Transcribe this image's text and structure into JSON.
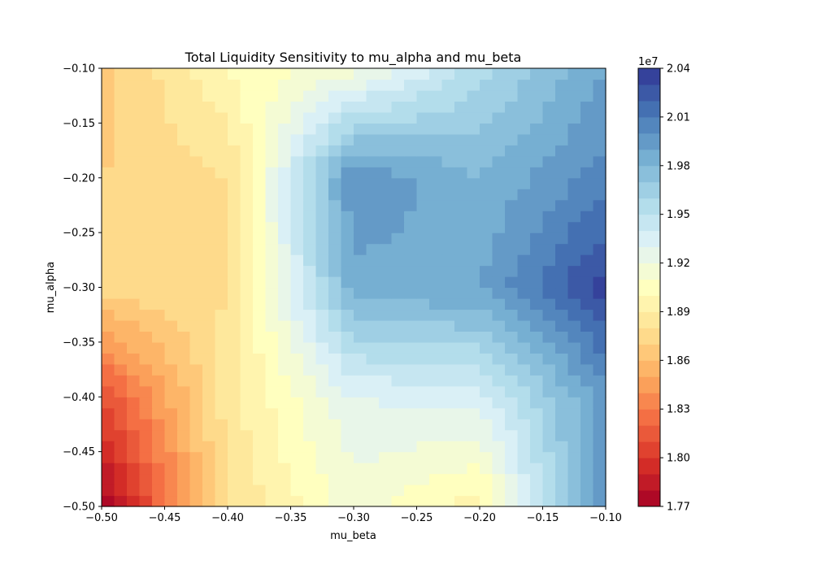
{
  "chart_data": {
    "type": "contourf",
    "title": "Total Liquidity Sensitivity to mu_alpha and mu_beta",
    "xlabel": "mu_beta",
    "ylabel": "mu_alpha",
    "xlim": [
      -0.5,
      -0.1
    ],
    "ylim": [
      -0.5,
      -0.1
    ],
    "x_ticks": [
      "−0.50",
      "−0.45",
      "−0.40",
      "−0.35",
      "−0.30",
      "−0.25",
      "−0.20",
      "−0.15",
      "−0.10"
    ],
    "y_ticks": [
      "−0.50",
      "−0.45",
      "−0.40",
      "−0.35",
      "−0.30",
      "−0.25",
      "−0.20",
      "−0.15",
      "−0.10"
    ],
    "x": [
      -0.5,
      -0.4,
      -0.3,
      -0.2,
      -0.1
    ],
    "y": [
      -0.5,
      -0.4,
      -0.3,
      -0.2,
      -0.1
    ],
    "z": [
      [
        17700000.0,
        18800000.0,
        19150000.0,
        18950000.0,
        20000000.0
      ],
      [
        18100000.0,
        18850000.0,
        19300000.0,
        19350000.0,
        19950000.0
      ],
      [
        18750000.0,
        18800000.0,
        19850000.0,
        19900000.0,
        20350000.0
      ],
      [
        18700000.0,
        18800000.0,
        20000000.0,
        19800000.0,
        20050000.0
      ],
      [
        18650000.0,
        19000000.0,
        19150000.0,
        19550000.0,
        19900000.0
      ]
    ],
    "colormap": "RdYlBu",
    "colorbar": {
      "min": 17700000.0,
      "max": 20400000.0,
      "levels": 27,
      "tick_labels": [
        "1.77",
        "1.80",
        "1.83",
        "1.86",
        "1.89",
        "1.92",
        "1.95",
        "1.98",
        "2.01",
        "2.04"
      ],
      "offset_label": "1e7"
    }
  }
}
